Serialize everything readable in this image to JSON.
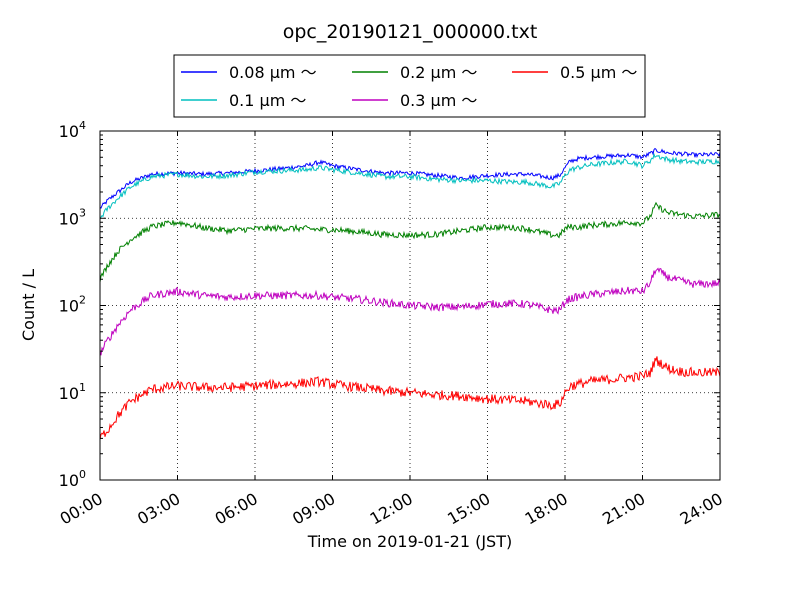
{
  "chart_data": {
    "type": "line",
    "title": "opc_20190121_000000.txt",
    "xlabel": "Time on 2019-01-21 (JST)",
    "ylabel": "Count / L",
    "x_tick_labels": [
      "00:00",
      "03:00",
      "06:00",
      "09:00",
      "12:00",
      "15:00",
      "18:00",
      "21:00",
      "24:00"
    ],
    "x_tick_hours": [
      0,
      3,
      6,
      9,
      12,
      15,
      18,
      21,
      24
    ],
    "xlim_hours": [
      0,
      24
    ],
    "y_scale": "log",
    "ylim": [
      1,
      10000
    ],
    "y_ticks": [
      {
        "value": 1,
        "base": "10",
        "exp": "0"
      },
      {
        "value": 10,
        "base": "10",
        "exp": "1"
      },
      {
        "value": 100,
        "base": "10",
        "exp": "2"
      },
      {
        "value": 1000,
        "base": "10",
        "exp": "3"
      },
      {
        "value": 10000,
        "base": "10",
        "exp": "4"
      }
    ],
    "grid": true,
    "legend_placement": "top-center, above plot",
    "series": [
      {
        "name": "0.08 μm ～",
        "color": "#0000ff",
        "x": [
          0,
          0.3,
          0.7,
          1.2,
          2,
          3,
          4,
          5,
          6,
          7,
          8,
          8.5,
          9,
          10,
          11,
          12,
          13,
          14,
          15,
          16,
          16.5,
          17.5,
          17.8,
          18,
          18.2,
          18.5,
          19,
          20,
          20.5,
          21,
          21.3,
          21.5,
          21.8,
          22,
          22.5,
          23,
          24
        ],
        "values": [
          1300,
          1600,
          2000,
          2600,
          3200,
          3300,
          3200,
          3300,
          3500,
          3700,
          4000,
          4400,
          4000,
          3600,
          3300,
          3300,
          3100,
          2900,
          3100,
          3200,
          3200,
          2900,
          3100,
          3800,
          4500,
          4800,
          5000,
          5200,
          5300,
          5000,
          5500,
          6000,
          5800,
          5600,
          5500,
          5300,
          5400
        ]
      },
      {
        "name": "0.1 μm ～",
        "color": "#00bfbf",
        "x": [
          0,
          0.3,
          0.7,
          1.2,
          2,
          3,
          4,
          5,
          6,
          7,
          8,
          8.5,
          9,
          10,
          11,
          12,
          13,
          14,
          15,
          16,
          16.5,
          17.5,
          17.8,
          18,
          18.2,
          18.5,
          19,
          20,
          20.5,
          21,
          21.3,
          21.5,
          21.8,
          22,
          22.5,
          23,
          24
        ],
        "values": [
          1000,
          1300,
          1700,
          2300,
          3000,
          3200,
          3000,
          3100,
          3400,
          3500,
          3600,
          3800,
          3600,
          3300,
          3000,
          3000,
          2800,
          2700,
          2700,
          2600,
          2600,
          2300,
          2500,
          3100,
          3600,
          3800,
          4100,
          4400,
          4500,
          4000,
          4600,
          5300,
          4900,
          4700,
          4500,
          4400,
          4500
        ]
      },
      {
        "name": "0.2 μm ～",
        "color": "#008000",
        "x": [
          0,
          0.3,
          0.7,
          1.2,
          2,
          3,
          4,
          5,
          6,
          7,
          8,
          8.5,
          9,
          10,
          11,
          12,
          13,
          14,
          15,
          16,
          16.5,
          17.5,
          17.8,
          18,
          18.2,
          18.5,
          19,
          20,
          20.5,
          21,
          21.3,
          21.5,
          21.8,
          22,
          22.5,
          23,
          24
        ],
        "values": [
          200,
          290,
          420,
          580,
          800,
          900,
          780,
          720,
          760,
          770,
          760,
          740,
          740,
          700,
          650,
          640,
          650,
          720,
          790,
          780,
          760,
          640,
          640,
          760,
          800,
          790,
          830,
          870,
          900,
          880,
          1050,
          1400,
          1250,
          1150,
          1100,
          1050,
          1100
        ]
      },
      {
        "name": "0.3 μm ～",
        "color": "#bf00bf",
        "x": [
          0,
          0.3,
          0.7,
          1.2,
          2,
          3,
          4,
          5,
          6,
          7,
          8,
          8.5,
          9,
          10,
          11,
          12,
          13,
          14,
          15,
          16,
          16.5,
          17.5,
          17.8,
          18,
          18.2,
          18.5,
          19,
          20,
          20.5,
          21,
          21.3,
          21.5,
          21.8,
          22,
          22.5,
          23,
          24
        ],
        "values": [
          28,
          40,
          60,
          90,
          130,
          145,
          130,
          125,
          130,
          130,
          130,
          130,
          125,
          118,
          108,
          100,
          96,
          96,
          104,
          105,
          104,
          88,
          88,
          110,
          120,
          125,
          133,
          143,
          148,
          145,
          180,
          260,
          230,
          210,
          190,
          175,
          180
        ]
      },
      {
        "name": "0.5 μm ～",
        "color": "#ff0000",
        "x": [
          0,
          0.3,
          0.7,
          1.2,
          2,
          3,
          4,
          5,
          6,
          7,
          8,
          8.5,
          9,
          10,
          11,
          12,
          13,
          14,
          15,
          16,
          16.5,
          17.5,
          17.8,
          18,
          18.2,
          18.5,
          19,
          20,
          20.5,
          21,
          21.3,
          21.5,
          21.8,
          22,
          22.5,
          23,
          24
        ],
        "values": [
          3,
          3.8,
          5.5,
          8,
          11,
          12,
          11.5,
          11.5,
          12,
          12.5,
          13,
          13.5,
          12.5,
          11.5,
          10.5,
          10,
          9.5,
          9.2,
          8.5,
          8.2,
          8,
          7.2,
          7.5,
          10,
          12,
          12.5,
          13.5,
          14.5,
          15,
          15.5,
          17,
          24,
          21,
          19,
          17.5,
          17,
          17
        ]
      }
    ]
  }
}
